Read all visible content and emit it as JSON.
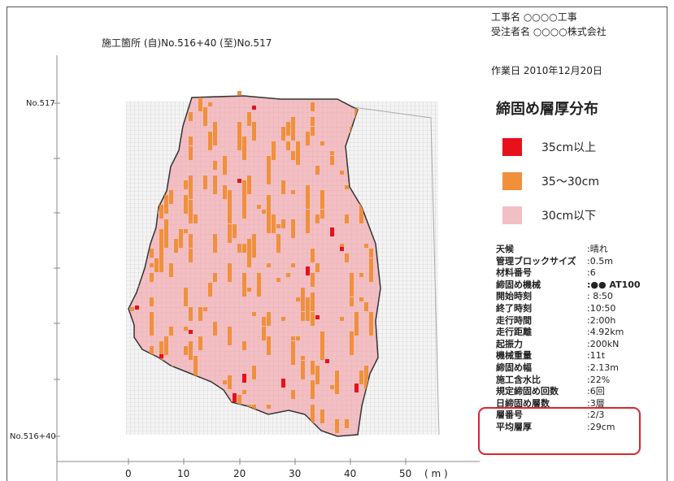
{
  "header": {
    "location": "施工箇所 (自)No.516+40 (至)No.517",
    "project_name": "工事名 ○○○○工事",
    "contractor": "受注者名 ○○○○株式会社",
    "work_date": "作業日 2010年12月20日"
  },
  "legend": {
    "title": "締固め層厚分布",
    "items": [
      {
        "label": "35cm以上",
        "color": "#e8101a"
      },
      {
        "label": "35〜30cm",
        "color": "#f0903c"
      },
      {
        "label": "30cm以下",
        "color": "#f2c0c4"
      }
    ]
  },
  "axes": {
    "y_top_label": "No.517",
    "y_bottom_label": "No.516+40",
    "x_ticks": [
      "0",
      "10",
      "20",
      "30",
      "40",
      "50"
    ],
    "x_unit": "( m )"
  },
  "params": [
    {
      "key": "天候",
      "value": ":晴れ"
    },
    {
      "key": "管理ブロックサイズ",
      "value": ":0.5m"
    },
    {
      "key": "材料番号",
      "value": ":6"
    },
    {
      "key": "締固め機械",
      "value": ":●● AT100"
    },
    {
      "key": "開始時刻",
      "value": ": 8:50"
    },
    {
      "key": "終了時刻",
      "value": ":10:50"
    },
    {
      "key": "走行時間",
      "value": ":2:00h"
    },
    {
      "key": "走行距離",
      "value": ":4.92km"
    },
    {
      "key": "起振力",
      "value": ":200kN"
    },
    {
      "key": "機械重量",
      "value": ":11t"
    },
    {
      "key": "締固め幅",
      "value": ":2.13m"
    },
    {
      "key": "施工含水比",
      "value": ":22%"
    },
    {
      "key": "規定締固め回数",
      "value": ":6回"
    },
    {
      "key": "日締固め層数",
      "value": ":3層"
    },
    {
      "key": "層番号",
      "value": ":2/3"
    },
    {
      "key": "平均層厚",
      "value": ":29cm"
    }
  ]
}
